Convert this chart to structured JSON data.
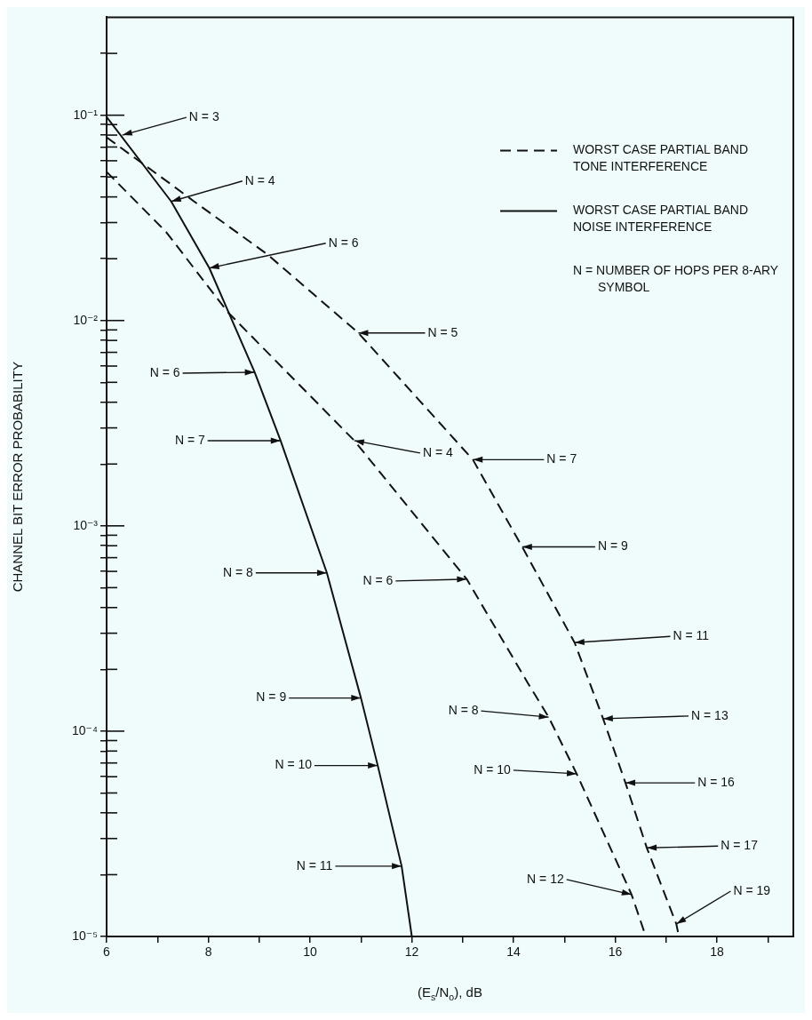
{
  "chart_data": {
    "type": "line",
    "xlabel": "(E$_{s}$/N$_{o}$), dB",
    "ylabel": "CHANNEL BIT ERROR PROBABILITY",
    "log": "y",
    "grid": false,
    "legend": "top right",
    "xlim": [
      6,
      19.5
    ],
    "ylim": [
      1e-05,
      0.3
    ],
    "xticks": [
      6,
      {
        "value": 7,
        "label": null
      },
      8,
      {
        "value": 9,
        "label": null
      },
      10,
      {
        "value": 11,
        "label": null
      },
      12,
      {
        "value": 13,
        "label": null
      },
      14,
      {
        "value": 15,
        "label": null
      },
      16,
      {
        "value": 17,
        "label": null
      },
      18,
      {
        "value": 19,
        "label": null
      }
    ],
    "yticks": [
      {
        "value": 1e-05,
        "label": "10⁻⁵"
      },
      {
        "value": 2e-05,
        "label": null
      },
      {
        "value": 3e-05,
        "label": null
      },
      {
        "value": 4e-05,
        "label": null
      },
      {
        "value": 5e-05,
        "label": null
      },
      {
        "value": 6e-05,
        "label": null
      },
      {
        "value": 7e-05,
        "label": null
      },
      {
        "value": 8e-05,
        "label": null
      },
      {
        "value": 9e-05,
        "label": null
      },
      {
        "value": 0.0001,
        "label": "10⁻⁴"
      },
      {
        "value": 0.0002,
        "label": null
      },
      {
        "value": 0.0003,
        "label": null
      },
      {
        "value": 0.0004,
        "label": null
      },
      {
        "value": 0.0005,
        "label": null
      },
      {
        "value": 0.0006,
        "label": null
      },
      {
        "value": 0.0007,
        "label": null
      },
      {
        "value": 0.0008,
        "label": null
      },
      {
        "value": 0.0009,
        "label": null
      },
      {
        "value": 0.001,
        "label": "10⁻³"
      },
      {
        "value": 0.002,
        "label": null
      },
      {
        "value": 0.003,
        "label": null
      },
      {
        "value": 0.004,
        "label": null
      },
      {
        "value": 0.005,
        "label": null
      },
      {
        "value": 0.006,
        "label": null
      },
      {
        "value": 0.007,
        "label": null
      },
      {
        "value": 0.008,
        "label": null
      },
      {
        "value": 0.009,
        "label": null
      },
      {
        "value": 0.01,
        "label": "10⁻²"
      },
      {
        "value": 0.02,
        "label": null
      },
      {
        "value": 0.03,
        "label": null
      },
      {
        "value": 0.04,
        "label": null
      },
      {
        "value": 0.05,
        "label": null
      },
      {
        "value": 0.06,
        "label": null
      },
      {
        "value": 0.07,
        "label": null
      },
      {
        "value": 0.08,
        "label": null
      },
      {
        "value": 0.09,
        "label": null
      },
      {
        "value": 0.1,
        "label": "10⁻¹"
      },
      {
        "value": 0.2,
        "label": null
      }
    ],
    "series": [
      {
        "name": "WORST CASE PARTIAL BAND TONE INTERFERENCE",
        "color": "#111111",
        "line_style": "dashed",
        "x": [
          6,
          7.27,
          7.72,
          9.16,
          10.95,
          13.2,
          14.17,
          15.2,
          15.76,
          16.2,
          16.62,
          17.2,
          17.25
        ],
        "values": [
          0.078,
          0.046,
          0.038,
          0.021,
          0.0087,
          0.0021,
          0.00079,
          0.00027,
          0.000115,
          5.6e-05,
          2.7e-05,
          1.15e-05,
          1e-05
        ]
      },
      {
        "color": "#111111",
        "line_style": "dashed",
        "x": [
          6,
          7.17,
          8.38,
          10.87,
          13.08,
          14.29,
          14.69,
          15.24,
          16.32,
          16.6
        ],
        "values": [
          0.053,
          0.027,
          0.011,
          0.0026,
          0.00055,
          0.00017,
          0.000117,
          6.2e-05,
          1.6e-05,
          1e-05
        ]
      },
      {
        "name": "WORST CASE PARTIAL BAND NOISE INTERFERENCE",
        "color": "#111111",
        "line_style": "solid",
        "x": [
          6,
          7.27,
          8.02,
          8.91,
          9.42,
          10.33,
          11.0,
          11.33,
          11.8,
          12.0
        ],
        "values": [
          0.098,
          0.038,
          0.018,
          0.0056,
          0.0026,
          0.00059,
          0.000145,
          6.8e-05,
          2.2e-05,
          1e-05
        ]
      }
    ],
    "annotations": [
      "N = NUMBER OF HOPS PER 8-ARY SYMBOL",
      {
        "text": "N = 3",
        "x": 6.31,
        "y": 0.08
      },
      {
        "text": "N = 4",
        "x": 7.27,
        "y": 0.038
      },
      {
        "text": "N = 6",
        "x": 8.02,
        "y": 0.018
      },
      {
        "text": "N = 6",
        "x": 8.91,
        "y": 0.0056
      },
      {
        "text": "N = 7",
        "x": 9.42,
        "y": 0.0026
      },
      {
        "text": "N = 8",
        "x": 10.33,
        "y": 0.00059
      },
      {
        "text": "N = 9",
        "x": 11.0,
        "y": 0.000145
      },
      {
        "text": "N = 10",
        "x": 11.33,
        "y": 6.8e-05
      },
      {
        "text": "N = 11",
        "x": 11.8,
        "y": 2.2e-05
      },
      {
        "text": "N = 5",
        "x": 10.95,
        "y": 0.0087
      },
      {
        "text": "N = 7",
        "x": 13.2,
        "y": 0.0021
      },
      {
        "text": "N = 9",
        "x": 14.17,
        "y": 0.00079
      },
      {
        "text": "N = 11",
        "x": 15.2,
        "y": 0.00027
      },
      {
        "text": "N = 13",
        "x": 15.76,
        "y": 0.000115
      },
      {
        "text": "N = 16",
        "x": 16.2,
        "y": 5.6e-05
      },
      {
        "text": "N = 17",
        "x": 16.62,
        "y": 2.7e-05
      },
      {
        "text": "N = 19",
        "x": 17.2,
        "y": 1.15e-05
      },
      {
        "text": "N = 4",
        "x": 10.87,
        "y": 0.0026
      },
      {
        "text": "N = 6",
        "x": 13.08,
        "y": 0.00055
      },
      {
        "text": "N = 8",
        "x": 14.69,
        "y": 0.000117
      },
      {
        "text": "N = 10",
        "x": 15.24,
        "y": 6.2e-05
      },
      {
        "text": "N = 12",
        "x": 16.32,
        "y": 1.6e-05
      }
    ]
  }
}
